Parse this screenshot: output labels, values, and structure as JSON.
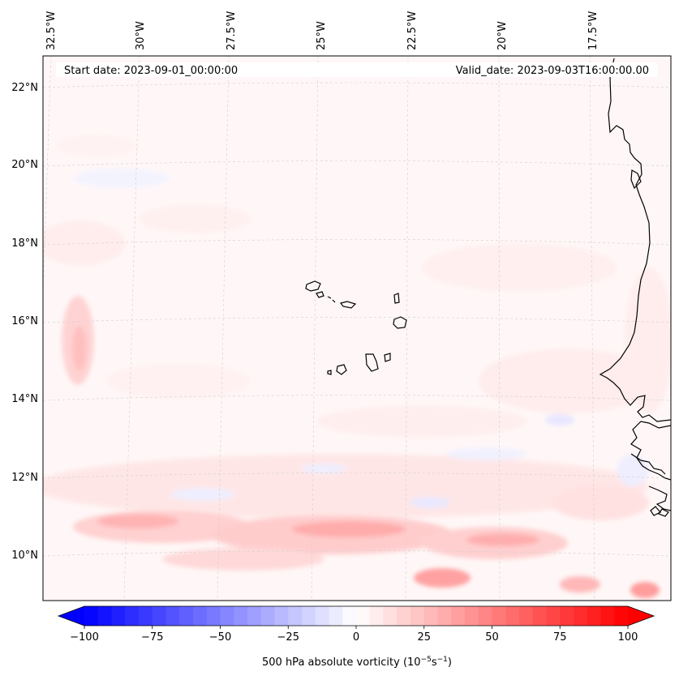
{
  "map": {
    "start_date_label": "Start date: 2023-09-01_00:00:00",
    "valid_date_label": "Valid_date: 2023-09-03T16:00:00.00",
    "lon_labels": [
      "32.5°W",
      "30°W",
      "27.5°W",
      "25°W",
      "22.5°W",
      "20°W",
      "17.5°W"
    ],
    "lat_labels": [
      "22°N",
      "20°N",
      "18°N",
      "16°N",
      "14°N",
      "12°N",
      "10°N"
    ],
    "field": "500 hPa absolute vorticity",
    "colors": {
      "neg": "#0000ff",
      "pos": "#ff0000",
      "coast": "#000000",
      "grid": "#cccccc"
    }
  },
  "colorbar": {
    "ticks": [
      "−100",
      "−75",
      "−50",
      "−25",
      "0",
      "25",
      "50",
      "75",
      "100"
    ],
    "min": -100,
    "max": 100,
    "label_prefix": "500 hPa absolute vorticity (10",
    "label_exp1": "−5",
    "label_mid": "s",
    "label_exp2": "−1",
    "label_suffix": ")"
  }
}
